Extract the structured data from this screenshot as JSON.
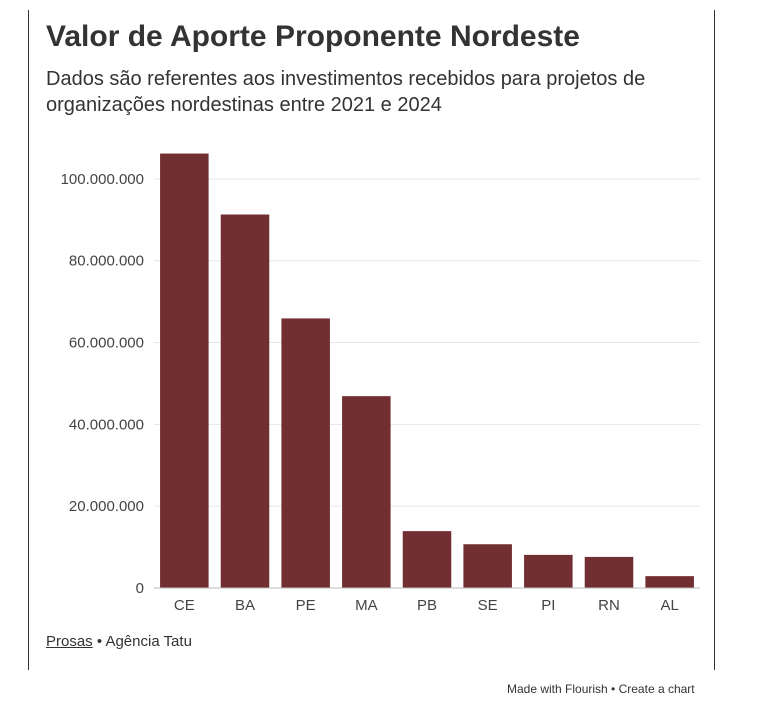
{
  "header": {
    "title": "Valor de Aporte Proponente Nordeste",
    "subtitle": "Dados são referentes aos investimentos recebidos para projetos de organizações nordestinas entre 2021 e 2024"
  },
  "footer": {
    "source_link": "Prosas",
    "source_separator": " • ",
    "source_rest": "Agência Tatu",
    "made_with": "Made with Flourish",
    "credit_separator": " • ",
    "create_chart": "Create a chart"
  },
  "colors": {
    "bar": "#722f32",
    "gridline": "#e6e6e6",
    "axis": "#333333"
  },
  "chart_data": {
    "type": "bar",
    "categories": [
      "CE",
      "BA",
      "PE",
      "MA",
      "PB",
      "SE",
      "PI",
      "RN",
      "AL"
    ],
    "values": [
      106200000,
      91300000,
      65900000,
      46900000,
      13900000,
      10700000,
      8100000,
      7600000,
      2900000
    ],
    "y_ticks": [
      0,
      20000000,
      40000000,
      60000000,
      80000000,
      100000000
    ],
    "y_tick_labels": [
      "0",
      "20.000.000",
      "40.000.000",
      "60.000.000",
      "80.000.000",
      "100.000.000"
    ],
    "ylim": [
      0,
      110000000
    ],
    "grid": true,
    "legend": "none"
  }
}
